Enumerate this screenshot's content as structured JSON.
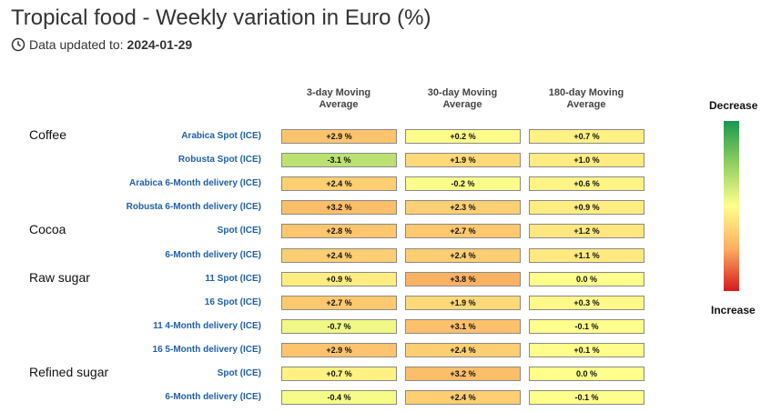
{
  "title": "Tropical food - Weekly variation in Euro (%)",
  "updated_label": "Data updated to:",
  "updated_date": "2024-01-29",
  "legend": {
    "top": "Decrease",
    "bottom": "Increase"
  },
  "chart_data": {
    "type": "heatmap",
    "title": "Tropical food - Weekly variation in Euro (%)",
    "columns": [
      [
        "3-day Moving",
        "Average"
      ],
      [
        "30-day Moving",
        "Average"
      ],
      [
        "180-day Moving",
        "Average"
      ]
    ],
    "groups": [
      {
        "name": "Coffee",
        "rows": [
          {
            "label": "Arabica Spot (ICE)",
            "values": [
              "+2.9 %",
              "+0.2 %",
              "+0.7 %"
            ]
          },
          {
            "label": "Robusta Spot (ICE)",
            "values": [
              "-3.1 %",
              "+1.9 %",
              "+1.0 %"
            ]
          },
          {
            "label": "Arabica 6-Month delivery (ICE)",
            "values": [
              "+2.4 %",
              "-0.2 %",
              "+0.6 %"
            ]
          },
          {
            "label": "Robusta 6-Month delivery (ICE)",
            "values": [
              "+3.2 %",
              "+2.3 %",
              "+0.9 %"
            ]
          }
        ]
      },
      {
        "name": "Cocoa",
        "rows": [
          {
            "label": "Spot (ICE)",
            "values": [
              "+2.8 %",
              "+2.7 %",
              "+1.2 %"
            ]
          },
          {
            "label": "6-Month delivery (ICE)",
            "values": [
              "+2.4 %",
              "+2.4 %",
              "+1.1 %"
            ]
          }
        ]
      },
      {
        "name": "Raw sugar",
        "rows": [
          {
            "label": "11 Spot (ICE)",
            "values": [
              "+0.9 %",
              "+3.8 %",
              "0.0 %"
            ]
          },
          {
            "label": "16 Spot (ICE)",
            "values": [
              "+2.7 %",
              "+1.9 %",
              "+0.3 %"
            ]
          },
          {
            "label": "11 4-Month delivery (ICE)",
            "values": [
              "-0.7 %",
              "+3.1 %",
              "-0.1 %"
            ]
          },
          {
            "label": "16 5-Month delivery (ICE)",
            "values": [
              "+2.9 %",
              "+2.4 %",
              "+0.1 %"
            ]
          }
        ]
      },
      {
        "name": "Refined sugar",
        "rows": [
          {
            "label": "Spot (ICE)",
            "values": [
              "+0.7 %",
              "+3.2 %",
              "0.0 %"
            ]
          },
          {
            "label": "6-Month delivery (ICE)",
            "values": [
              "-0.4 %",
              "+2.4 %",
              "-0.1 %"
            ]
          }
        ]
      }
    ],
    "color_scale": {
      "decrease": "#1a9850",
      "neutral": "#ffff8c",
      "increase": "#d7191c",
      "min": -10,
      "max": 10
    }
  }
}
